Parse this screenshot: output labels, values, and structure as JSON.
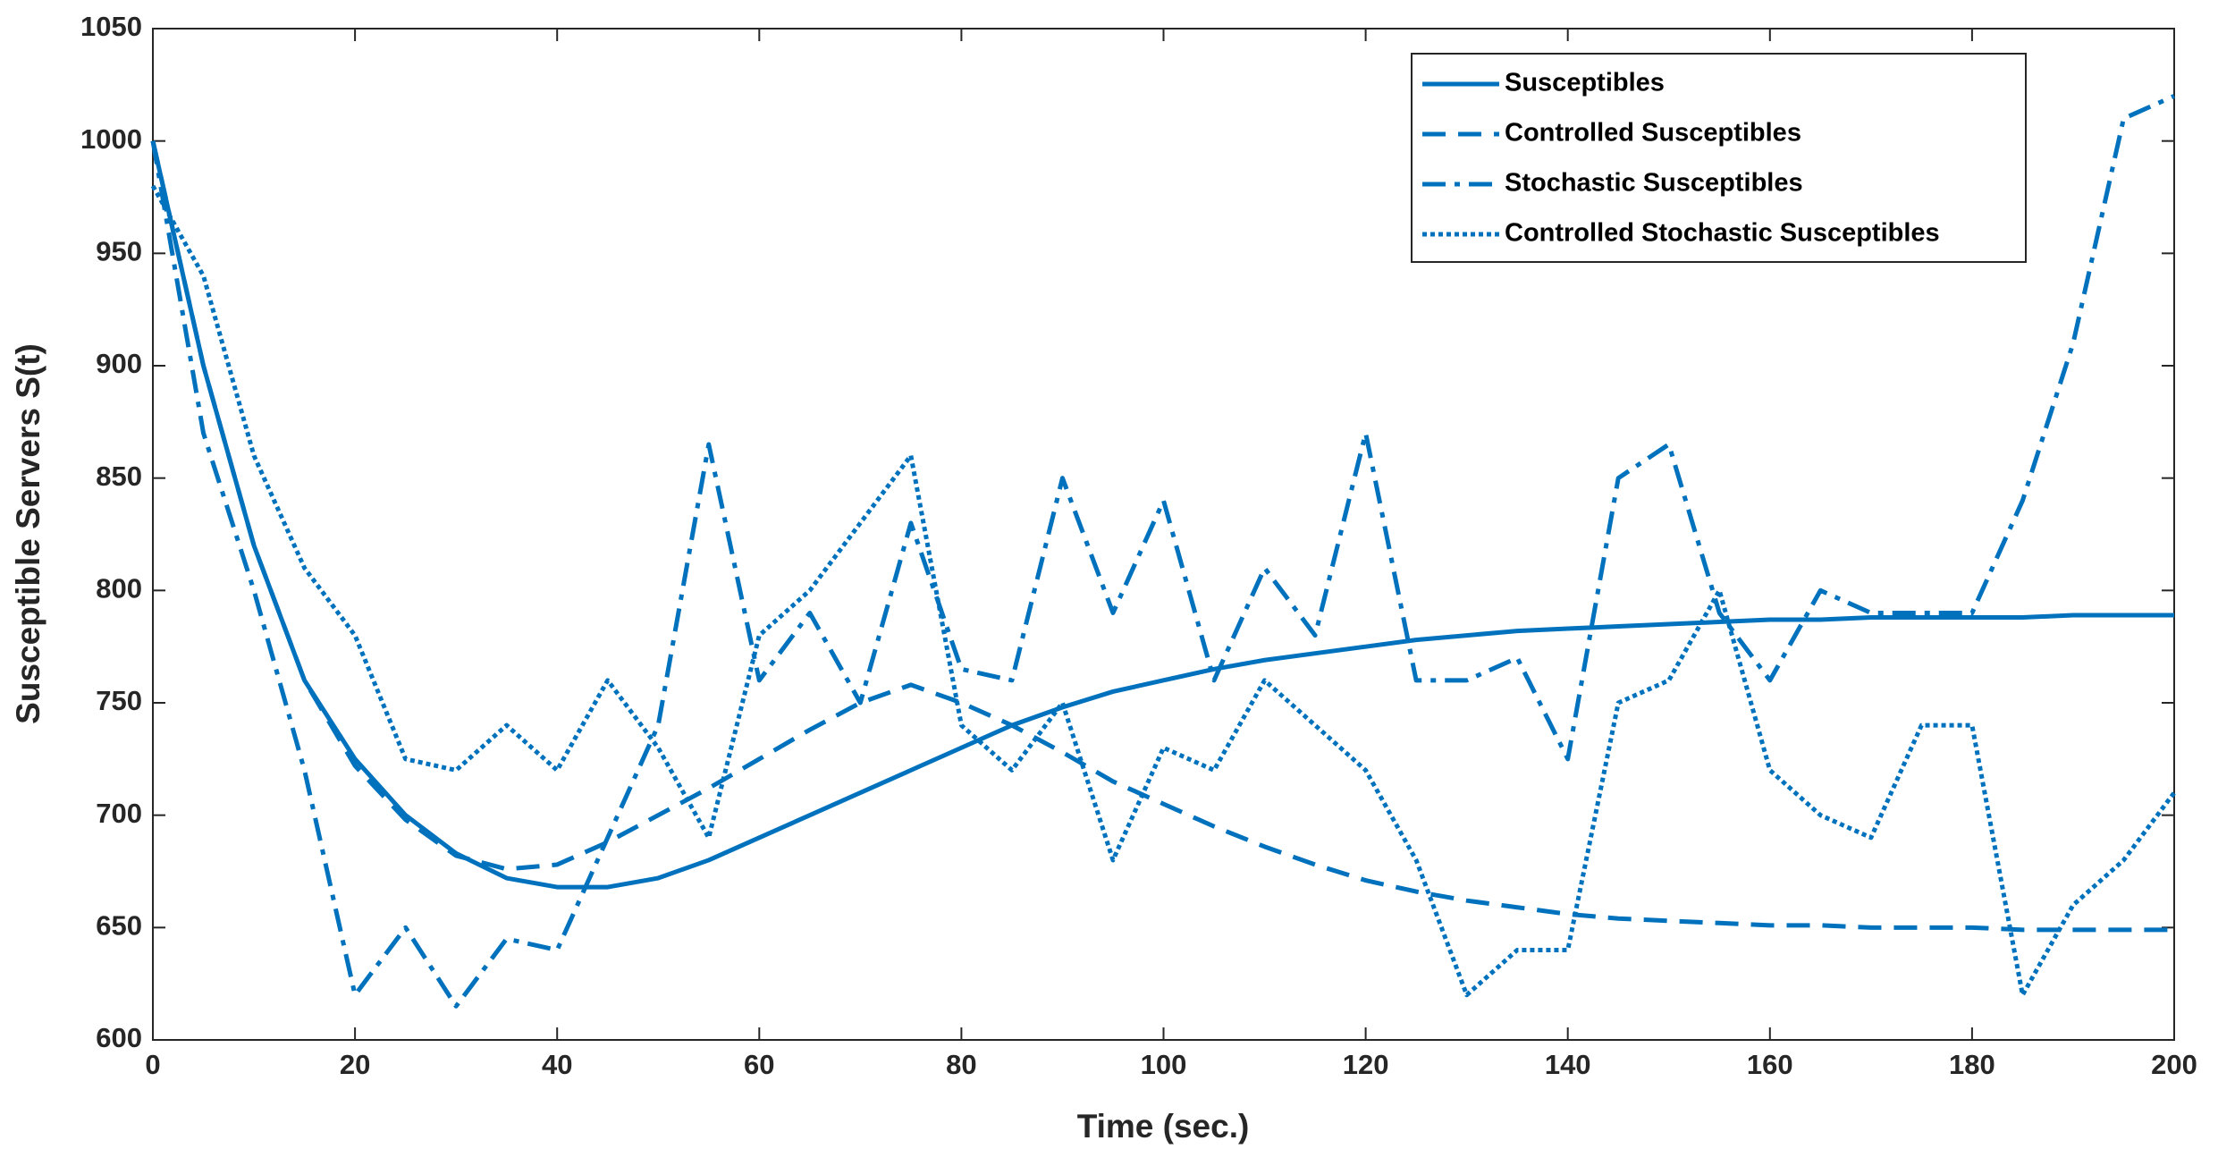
{
  "chart_data": {
    "type": "line",
    "xlabel": "Time (sec.)",
    "ylabel": "Susceptible Servers S(t)",
    "x": [
      0,
      5,
      10,
      15,
      20,
      25,
      30,
      35,
      40,
      45,
      50,
      55,
      60,
      65,
      70,
      75,
      80,
      85,
      90,
      95,
      100,
      105,
      110,
      115,
      120,
      125,
      130,
      135,
      140,
      145,
      150,
      155,
      160,
      165,
      170,
      175,
      180,
      185,
      190,
      195,
      200
    ],
    "series": [
      {
        "name": "Susceptibles",
        "color": "#0072bd",
        "linestyle": "solid",
        "values": [
          1000,
          900,
          820,
          760,
          725,
          700,
          683,
          672,
          668,
          668,
          672,
          680,
          690,
          700,
          710,
          720,
          730,
          740,
          748,
          755,
          760,
          765,
          769,
          772,
          775,
          778,
          780,
          782,
          783,
          784,
          785,
          786,
          787,
          787,
          788,
          788,
          788,
          788,
          789,
          789,
          789
        ]
      },
      {
        "name": "Controlled Susceptibles",
        "color": "#0072bd",
        "linestyle": "dashed",
        "values": [
          1000,
          900,
          820,
          760,
          722,
          698,
          682,
          676,
          678,
          688,
          700,
          712,
          725,
          738,
          750,
          758,
          750,
          740,
          728,
          715,
          705,
          695,
          686,
          678,
          671,
          666,
          662,
          659,
          656,
          654,
          653,
          652,
          651,
          651,
          650,
          650,
          650,
          649,
          649,
          649,
          649
        ]
      },
      {
        "name": "Stochastic Susceptibles",
        "color": "#0072bd",
        "linestyle": "dashdot",
        "values": [
          1000,
          870,
          800,
          720,
          620,
          650,
          615,
          645,
          640,
          690,
          740,
          865,
          760,
          790,
          750,
          830,
          765,
          760,
          850,
          790,
          840,
          760,
          810,
          780,
          870,
          760,
          760,
          770,
          725,
          850,
          865,
          790,
          760,
          800,
          790,
          790,
          790,
          840,
          910,
          1010,
          1020
        ]
      },
      {
        "name": "Controlled Stochastic Susceptibles",
        "color": "#0072bd",
        "linestyle": "dotted",
        "values": [
          980,
          940,
          860,
          810,
          780,
          725,
          720,
          740,
          720,
          760,
          730,
          690,
          780,
          800,
          830,
          860,
          740,
          720,
          750,
          680,
          730,
          720,
          760,
          740,
          720,
          680,
          620,
          640,
          640,
          750,
          760,
          800,
          720,
          700,
          690,
          740,
          740,
          620,
          660,
          680,
          710
        ]
      }
    ],
    "xlim": [
      0,
      200
    ],
    "xticks": [
      0,
      20,
      40,
      60,
      80,
      100,
      120,
      140,
      160,
      180,
      200
    ],
    "ylim": [
      600,
      1050
    ],
    "yticks": [
      600,
      650,
      700,
      750,
      800,
      850,
      900,
      950,
      1000,
      1050
    ],
    "grid": false,
    "legend": "upper right"
  }
}
